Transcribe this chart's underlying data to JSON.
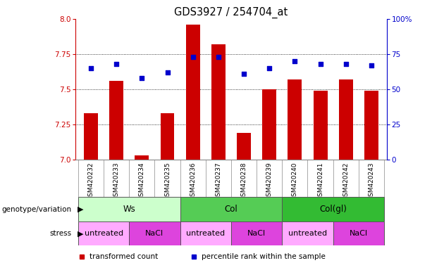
{
  "title": "GDS3927 / 254704_at",
  "samples": [
    "GSM420232",
    "GSM420233",
    "GSM420234",
    "GSM420235",
    "GSM420236",
    "GSM420237",
    "GSM420238",
    "GSM420239",
    "GSM420240",
    "GSM420241",
    "GSM420242",
    "GSM420243"
  ],
  "transformed_count": [
    7.33,
    7.56,
    7.03,
    7.33,
    7.96,
    7.82,
    7.19,
    7.5,
    7.57,
    7.49,
    7.57,
    7.49
  ],
  "percentile_rank": [
    65,
    68,
    58,
    62,
    73,
    73,
    61,
    65,
    70,
    68,
    68,
    67
  ],
  "ylim_left": [
    7.0,
    8.0
  ],
  "ylim_right": [
    0,
    100
  ],
  "yticks_left": [
    7.0,
    7.25,
    7.5,
    7.75,
    8.0
  ],
  "yticks_right": [
    0,
    25,
    50,
    75,
    100
  ],
  "bar_color": "#cc0000",
  "dot_color": "#0000cc",
  "groups": [
    {
      "label": "Ws",
      "start": 0,
      "end": 4,
      "color": "#ccffcc"
    },
    {
      "label": "Col",
      "start": 4,
      "end": 8,
      "color": "#55cc55"
    },
    {
      "label": "Col(gl)",
      "start": 8,
      "end": 12,
      "color": "#33bb33"
    }
  ],
  "stress": [
    {
      "label": "untreated",
      "start": 0,
      "end": 2,
      "color": "#ffaaff"
    },
    {
      "label": "NaCl",
      "start": 2,
      "end": 4,
      "color": "#dd44dd"
    },
    {
      "label": "untreated",
      "start": 4,
      "end": 6,
      "color": "#ffaaff"
    },
    {
      "label": "NaCl",
      "start": 6,
      "end": 8,
      "color": "#dd44dd"
    },
    {
      "label": "untreated",
      "start": 8,
      "end": 10,
      "color": "#ffaaff"
    },
    {
      "label": "NaCl",
      "start": 10,
      "end": 12,
      "color": "#dd44dd"
    }
  ],
  "left_label_color": "#cc0000",
  "right_label_color": "#0000cc",
  "sample_label_bg": "#cccccc",
  "background_color": "#ffffff",
  "legend_items": [
    {
      "color": "#cc0000",
      "label": "transformed count"
    },
    {
      "color": "#0000cc",
      "label": "percentile rank within the sample"
    }
  ],
  "grid_yticks": [
    7.25,
    7.5,
    7.75
  ],
  "bar_width": 0.55
}
